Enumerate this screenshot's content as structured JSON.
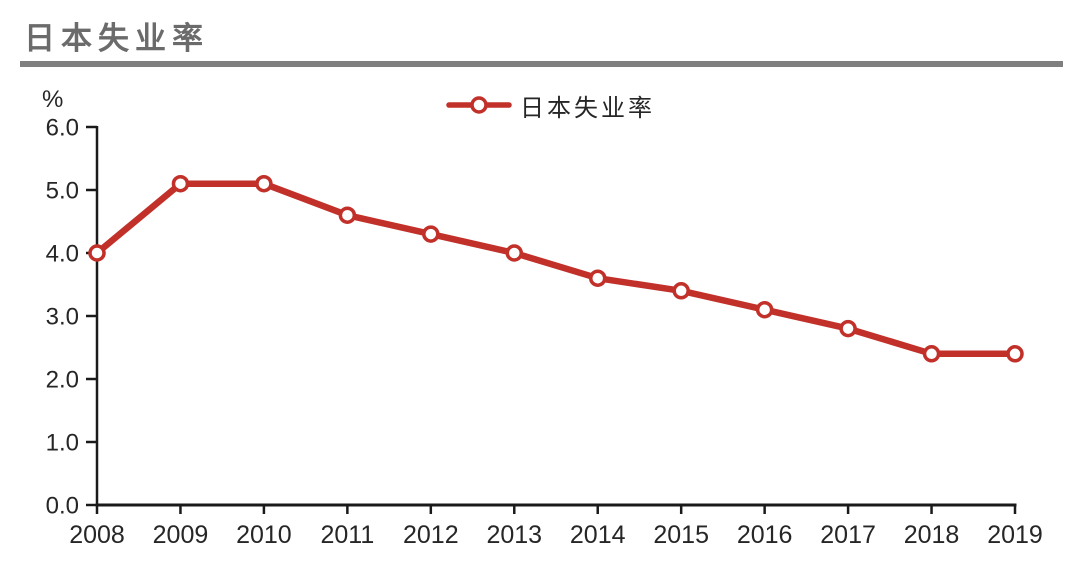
{
  "header": {
    "title": "日本失业率"
  },
  "colors": {
    "series_red": "#c2302a",
    "axis": "#1a1a1a",
    "tick_text": "#262626",
    "title_gray": "#6b6b6b",
    "divider_gray": "#7f7f7f",
    "marker_fill": "#ffffff"
  },
  "chart_data": {
    "type": "line",
    "title": "日本失业率",
    "ylabel": "%",
    "xlabel": "",
    "categories": [
      "2008",
      "2009",
      "2010",
      "2011",
      "2012",
      "2013",
      "2014",
      "2015",
      "2016",
      "2017",
      "2018",
      "2019"
    ],
    "series": [
      {
        "name": "日本失业率",
        "values": [
          4.0,
          5.1,
          5.1,
          4.6,
          4.3,
          4.0,
          3.6,
          3.4,
          3.1,
          2.8,
          2.4,
          2.4
        ]
      }
    ],
    "ylim": [
      0.0,
      6.0
    ],
    "ytick_values": [
      0,
      1,
      2,
      3,
      4,
      5,
      6
    ],
    "ytick_labels": [
      "0.0",
      "1.0",
      "2.0",
      "3.0",
      "4.0",
      "5.0",
      "6.0"
    ],
    "grid": false,
    "legend_position": "top-center",
    "marker_style": "open-circle"
  }
}
